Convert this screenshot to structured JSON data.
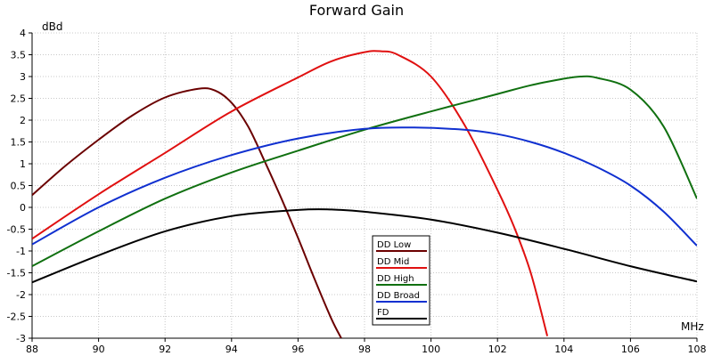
{
  "chart_data": {
    "type": "line",
    "title": "Forward Gain",
    "xlabel": "MHz",
    "ylabel": "dBd",
    "xlim": [
      88,
      108
    ],
    "ylim": [
      -3,
      4
    ],
    "xticks": [
      "88",
      "90",
      "92",
      "94",
      "96",
      "98",
      "100",
      "102",
      "104",
      "106",
      "108"
    ],
    "yticks": [
      "-3",
      "-2.5",
      "-2",
      "-1.5",
      "-1",
      "-0.5",
      "0",
      "0.5",
      "1",
      "1.5",
      "2",
      "2.5",
      "3",
      "3.5",
      "4"
    ],
    "grid": true,
    "legend_position": "bottom-center",
    "series": [
      {
        "name": "DD Low",
        "color": "#6b0000",
        "points": [
          [
            88,
            0.28
          ],
          [
            89,
            0.95
          ],
          [
            90,
            1.55
          ],
          [
            91,
            2.1
          ],
          [
            92,
            2.52
          ],
          [
            93,
            2.72
          ],
          [
            93.5,
            2.68
          ],
          [
            94,
            2.4
          ],
          [
            94.5,
            1.85
          ],
          [
            95,
            1.05
          ],
          [
            95.5,
            0.2
          ],
          [
            96,
            -0.7
          ],
          [
            96.5,
            -1.65
          ],
          [
            97,
            -2.55
          ],
          [
            97.3,
            -3.0
          ]
        ]
      },
      {
        "name": "DD Mid",
        "color": "#e01010",
        "points": [
          [
            88,
            -0.72
          ],
          [
            90,
            0.3
          ],
          [
            92,
            1.25
          ],
          [
            94,
            2.2
          ],
          [
            96,
            2.98
          ],
          [
            97,
            3.35
          ],
          [
            98,
            3.56
          ],
          [
            98.5,
            3.58
          ],
          [
            99,
            3.5
          ],
          [
            100,
            3.0
          ],
          [
            101,
            1.9
          ],
          [
            102,
            0.4
          ],
          [
            102.5,
            -0.45
          ],
          [
            103,
            -1.5
          ],
          [
            103.5,
            -2.95
          ]
        ]
      },
      {
        "name": "DD High",
        "color": "#107010",
        "points": [
          [
            88,
            -1.35
          ],
          [
            90,
            -0.55
          ],
          [
            92,
            0.2
          ],
          [
            94,
            0.8
          ],
          [
            96,
            1.3
          ],
          [
            98,
            1.78
          ],
          [
            100,
            2.2
          ],
          [
            102,
            2.6
          ],
          [
            103,
            2.8
          ],
          [
            104,
            2.95
          ],
          [
            104.5,
            3.0
          ],
          [
            105,
            2.97
          ],
          [
            106,
            2.7
          ],
          [
            107,
            1.85
          ],
          [
            108,
            0.2
          ]
        ]
      },
      {
        "name": "DD Broad",
        "color": "#1030d0",
        "points": [
          [
            88,
            -0.85
          ],
          [
            90,
            0.0
          ],
          [
            92,
            0.68
          ],
          [
            94,
            1.2
          ],
          [
            96,
            1.58
          ],
          [
            98,
            1.8
          ],
          [
            99.5,
            1.83
          ],
          [
            101,
            1.78
          ],
          [
            102,
            1.68
          ],
          [
            103,
            1.5
          ],
          [
            104,
            1.25
          ],
          [
            105,
            0.92
          ],
          [
            106,
            0.5
          ],
          [
            107,
            -0.1
          ],
          [
            108,
            -0.88
          ]
        ]
      },
      {
        "name": "FD",
        "color": "#000000",
        "points": [
          [
            88,
            -1.72
          ],
          [
            90,
            -1.1
          ],
          [
            92,
            -0.55
          ],
          [
            94,
            -0.2
          ],
          [
            96,
            -0.06
          ],
          [
            97,
            -0.05
          ],
          [
            98,
            -0.1
          ],
          [
            100,
            -0.28
          ],
          [
            102,
            -0.58
          ],
          [
            104,
            -0.95
          ],
          [
            106,
            -1.35
          ],
          [
            108,
            -1.7
          ]
        ]
      }
    ]
  }
}
